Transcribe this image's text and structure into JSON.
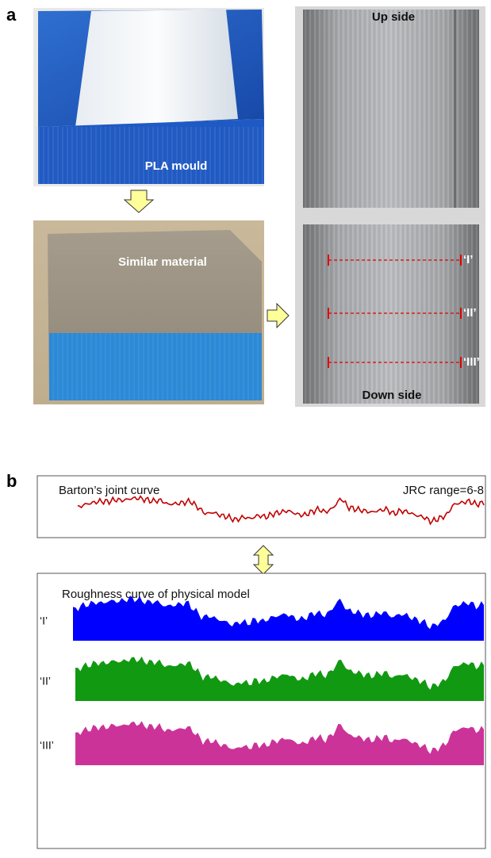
{
  "panel_a": {
    "label": "a",
    "mould_label": "PLA mould",
    "material_label": "Similar material",
    "up_side": "Up side",
    "down_side": "Down side",
    "section_labels": [
      "‘I’",
      "‘II’",
      "‘III’"
    ]
  },
  "panel_b": {
    "label": "b",
    "barton_title": "Barton’s joint curve",
    "jrc_range": "JRC range=6-8",
    "model_title": "Roughness curve of  physical model",
    "curve_labels": [
      "‘I’",
      "‘II’",
      "‘III’"
    ]
  }
}
